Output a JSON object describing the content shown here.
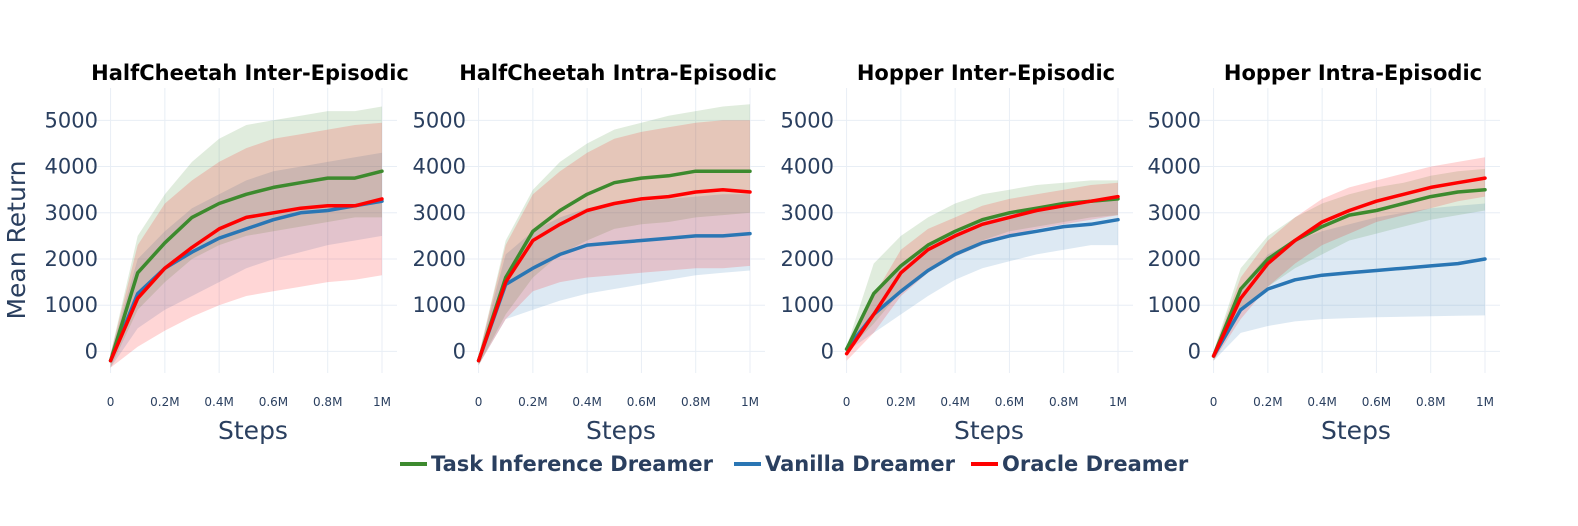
{
  "chart_data": {
    "type": "line",
    "ylabel": "Mean Return",
    "xlabel": "Steps",
    "x_ticks": [
      0,
      0.2,
      0.4,
      0.6,
      0.8,
      1.0
    ],
    "x_tick_labels": [
      "0",
      "0.2M",
      "0.4M",
      "0.6M",
      "0.8M",
      "1M"
    ],
    "y_ticks": [
      0,
      1000,
      2000,
      3000,
      4000,
      5000
    ],
    "y_tick_labels": [
      "0",
      "1000",
      "2000",
      "3000",
      "4000",
      "5000"
    ],
    "xlim": [
      -0.05,
      1.07
    ],
    "ylim": [
      -900,
      5700
    ],
    "x": [
      0,
      0.1,
      0.2,
      0.3,
      0.4,
      0.5,
      0.6,
      0.7,
      0.8,
      0.9,
      1.0
    ],
    "legend": [
      {
        "key": "task",
        "label": "Task Inference Dreamer",
        "color": "#3d8a2e"
      },
      {
        "key": "vanilla",
        "label": "Vanilla Dreamer",
        "color": "#2a76b4"
      },
      {
        "key": "oracle",
        "label": "Oracle Dreamer",
        "color": "#ff0000"
      }
    ],
    "panels": [
      {
        "title": "HalfCheetah Inter-Episodic",
        "series": [
          {
            "key": "vanilla",
            "name": "Vanilla Dreamer",
            "color": "#2a76b4",
            "mean": [
              -200,
              1250,
              1800,
              2150,
              2450,
              2650,
              2850,
              3000,
              3050,
              3150,
              3250
            ],
            "lower": [
              -350,
              500,
              900,
              1200,
              1500,
              1800,
              2000,
              2150,
              2300,
              2400,
              2500
            ],
            "upper": [
              -50,
              2000,
              2600,
              3100,
              3400,
              3700,
              3900,
              4000,
              4100,
              4200,
              4300
            ]
          },
          {
            "key": "task",
            "name": "Task Inference Dreamer",
            "color": "#3d8a2e",
            "mean": [
              -200,
              1700,
              2350,
              2900,
              3200,
              3400,
              3550,
              3650,
              3750,
              3750,
              3900
            ],
            "lower": [
              -350,
              900,
              1500,
              2000,
              2300,
              2500,
              2600,
              2700,
              2800,
              2900,
              2900
            ],
            "upper": [
              -50,
              2500,
              3400,
              4100,
              4600,
              4900,
              5000,
              5100,
              5200,
              5200,
              5300
            ]
          },
          {
            "key": "oracle",
            "name": "Oracle Dreamer",
            "color": "#ff0000",
            "mean": [
              -200,
              1150,
              1800,
              2250,
              2650,
              2900,
              3000,
              3100,
              3150,
              3150,
              3300
            ],
            "lower": [
              -350,
              100,
              450,
              750,
              1000,
              1200,
              1300,
              1400,
              1500,
              1550,
              1650
            ],
            "upper": [
              -50,
              2300,
              3200,
              3700,
              4100,
              4400,
              4600,
              4700,
              4800,
              4900,
              4950
            ]
          }
        ]
      },
      {
        "title": "HalfCheetah Intra-Episodic",
        "series": [
          {
            "key": "vanilla",
            "name": "Vanilla Dreamer",
            "color": "#2a76b4",
            "mean": [
              -200,
              1450,
              1800,
              2100,
              2300,
              2350,
              2400,
              2450,
              2500,
              2500,
              2550
            ],
            "lower": [
              -300,
              700,
              900,
              1100,
              1250,
              1350,
              1450,
              1550,
              1650,
              1700,
              1750
            ],
            "upper": [
              -100,
              2100,
              2600,
              2900,
              3100,
              3200,
              3250,
              3300,
              3350,
              3400,
              3400
            ]
          },
          {
            "key": "task",
            "name": "Task Inference Dreamer",
            "color": "#3d8a2e",
            "mean": [
              -200,
              1600,
              2600,
              3050,
              3400,
              3650,
              3750,
              3800,
              3900,
              3900,
              3900
            ],
            "lower": [
              -300,
              800,
              1600,
              2100,
              2400,
              2650,
              2750,
              2800,
              2900,
              2950,
              3000
            ],
            "upper": [
              -100,
              2400,
              3500,
              4100,
              4500,
              4800,
              4950,
              5100,
              5200,
              5300,
              5350
            ]
          },
          {
            "key": "oracle",
            "name": "Oracle Dreamer",
            "color": "#ff0000",
            "mean": [
              -200,
              1500,
              2400,
              2750,
              3050,
              3200,
              3300,
              3350,
              3450,
              3500,
              3450
            ],
            "lower": [
              -300,
              700,
              1300,
              1500,
              1600,
              1650,
              1700,
              1750,
              1800,
              1800,
              1850
            ],
            "upper": [
              -100,
              2300,
              3400,
              3900,
              4300,
              4600,
              4750,
              4850,
              4950,
              5000,
              5000
            ]
          }
        ]
      },
      {
        "title": "Hopper Inter-Episodic",
        "series": [
          {
            "key": "vanilla",
            "name": "Vanilla Dreamer",
            "color": "#2a76b4",
            "mean": [
              50,
              800,
              1300,
              1750,
              2100,
              2350,
              2500,
              2600,
              2700,
              2750,
              2850
            ],
            "lower": [
              0,
              400,
              800,
              1200,
              1550,
              1800,
              1950,
              2100,
              2200,
              2300,
              2300
            ],
            "upper": [
              100,
              1200,
              1800,
              2300,
              2600,
              2850,
              3000,
              3100,
              3150,
              3200,
              3300
            ]
          },
          {
            "key": "task",
            "name": "Task Inference Dreamer",
            "color": "#3d8a2e",
            "mean": [
              50,
              1250,
              1850,
              2300,
              2600,
              2850,
              3000,
              3100,
              3200,
              3250,
              3300
            ],
            "lower": [
              0,
              600,
              1300,
              1800,
              2100,
              2400,
              2600,
              2700,
              2800,
              2900,
              2950
            ],
            "upper": [
              100,
              1900,
              2500,
              2900,
              3200,
              3400,
              3500,
              3600,
              3650,
              3700,
              3700
            ]
          },
          {
            "key": "oracle",
            "name": "Oracle Dreamer",
            "color": "#ff0000",
            "mean": [
              -50,
              800,
              1700,
              2200,
              2500,
              2750,
              2900,
              3050,
              3150,
              3250,
              3350
            ],
            "lower": [
              -200,
              400,
              1200,
              1700,
              2050,
              2300,
              2500,
              2650,
              2750,
              2850,
              2950
            ],
            "upper": [
              100,
              1200,
              2200,
              2650,
              2900,
              3150,
              3300,
              3400,
              3500,
              3600,
              3650
            ]
          }
        ]
      },
      {
        "title": "Hopper Intra-Episodic",
        "series": [
          {
            "key": "vanilla",
            "name": "Vanilla Dreamer",
            "color": "#2a76b4",
            "mean": [
              -100,
              900,
              1350,
              1550,
              1650,
              1700,
              1750,
              1800,
              1850,
              1900,
              2000
            ],
            "lower": [
              -200,
              400,
              550,
              650,
              700,
              720,
              740,
              750,
              760,
              770,
              780
            ],
            "upper": [
              0,
              1400,
              2100,
              2400,
              2600,
              2750,
              2900,
              3000,
              3100,
              3150,
              3200
            ]
          },
          {
            "key": "task",
            "name": "Task Inference Dreamer",
            "color": "#3d8a2e",
            "mean": [
              -100,
              1350,
              2000,
              2400,
              2700,
              2950,
              3050,
              3200,
              3350,
              3450,
              3500
            ],
            "lower": [
              -200,
              900,
              1400,
              1800,
              2100,
              2400,
              2550,
              2700,
              2850,
              2950,
              3050
            ],
            "upper": [
              0,
              1800,
              2500,
              2900,
              3200,
              3400,
              3550,
              3650,
              3800,
              3900,
              3950
            ]
          },
          {
            "key": "oracle",
            "name": "Oracle Dreamer",
            "color": "#ff0000",
            "mean": [
              -100,
              1150,
              1900,
              2400,
              2800,
              3050,
              3250,
              3400,
              3550,
              3650,
              3750
            ],
            "lower": [
              -200,
              700,
              1400,
              1900,
              2300,
              2550,
              2800,
              2950,
              3100,
              3250,
              3350
            ],
            "upper": [
              0,
              1600,
              2400,
              2900,
              3300,
              3550,
              3700,
              3850,
              4000,
              4100,
              4200
            ]
          }
        ]
      }
    ]
  }
}
